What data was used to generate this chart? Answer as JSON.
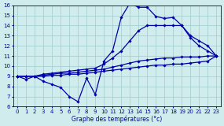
{
  "xlabel": "Graphe des températures (°c)",
  "background_color": "#d0ecec",
  "grid_color": "#a0cccc",
  "line_color": "#0000aa",
  "hours": [
    0,
    1,
    2,
    3,
    4,
    5,
    6,
    7,
    8,
    9,
    10,
    11,
    12,
    13,
    14,
    15,
    16,
    17,
    18,
    19,
    20,
    21,
    22,
    23
  ],
  "temp_line1": [
    9.0,
    8.7,
    9.0,
    8.5,
    8.2,
    7.9,
    7.0,
    6.5,
    8.8,
    7.2,
    10.5,
    11.5,
    14.8,
    16.2,
    15.8,
    15.8,
    14.9,
    14.7,
    14.8,
    14.0,
    12.8,
    12.0,
    11.5,
    11.0
  ],
  "temp_line2": [
    9.0,
    9.0,
    9.0,
    9.2,
    9.3,
    9.4,
    9.5,
    9.6,
    9.7,
    9.8,
    10.2,
    10.8,
    11.5,
    12.5,
    13.5,
    14.0,
    14.0,
    14.0,
    14.0,
    14.0,
    13.0,
    12.5,
    12.0,
    11.0
  ],
  "temp_line3": [
    9.0,
    9.0,
    9.0,
    9.1,
    9.2,
    9.3,
    9.3,
    9.4,
    9.5,
    9.6,
    9.7,
    9.9,
    10.1,
    10.3,
    10.5,
    10.6,
    10.7,
    10.8,
    10.8,
    10.9,
    10.9,
    10.9,
    11.0,
    11.0
  ],
  "temp_line4": [
    9.0,
    9.0,
    9.0,
    9.0,
    9.1,
    9.1,
    9.2,
    9.2,
    9.3,
    9.4,
    9.5,
    9.6,
    9.7,
    9.8,
    9.9,
    10.0,
    10.1,
    10.1,
    10.2,
    10.2,
    10.3,
    10.4,
    10.5,
    11.0
  ],
  "ylim": [
    6,
    16
  ],
  "yticks": [
    6,
    7,
    8,
    9,
    10,
    11,
    12,
    13,
    14,
    15,
    16
  ],
  "xticks": [
    0,
    1,
    2,
    3,
    4,
    5,
    6,
    7,
    8,
    9,
    10,
    11,
    12,
    13,
    14,
    15,
    16,
    17,
    18,
    19,
    20,
    21,
    22,
    23
  ],
  "marker": "D",
  "markersize": 1.8,
  "linewidth": 0.9,
  "tick_fontsize": 5.0,
  "xlabel_fontsize": 5.5
}
